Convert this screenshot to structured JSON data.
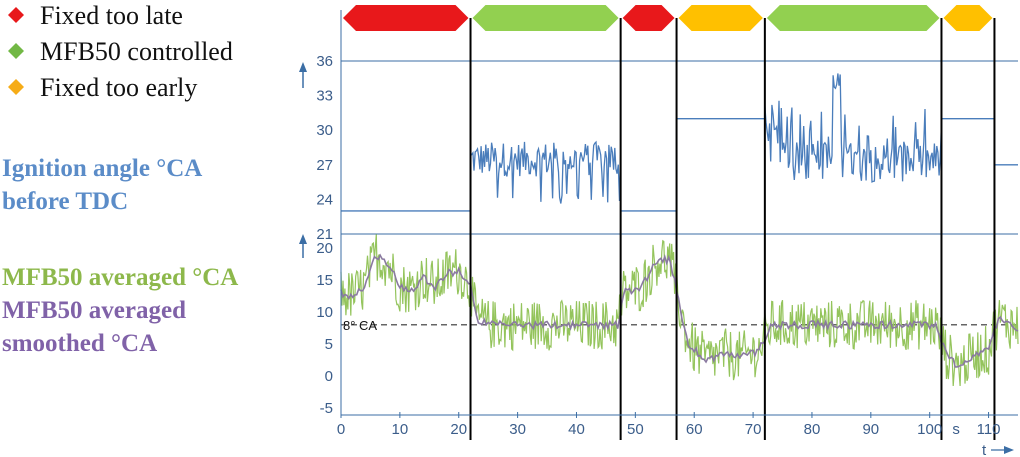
{
  "chart_data": {
    "type": "line",
    "legend": [
      {
        "label": "Fixed too late",
        "color": "#e8181b"
      },
      {
        "label": "MFB50 controlled",
        "color": "#72b845"
      },
      {
        "label": "Fixed too early",
        "color": "#f6ac17"
      }
    ],
    "top_panel": {
      "label_lines": [
        "Ignition angle °CA",
        "before TDC"
      ],
      "label_color": "#5b8cc8",
      "yticks": [
        "36",
        "33",
        "30",
        "27",
        "24",
        "21"
      ],
      "ylim": [
        21,
        36
      ],
      "fixed_segments": [
        {
          "from": 0,
          "to": 22,
          "value": 23
        },
        {
          "from": 47.5,
          "to": 57,
          "value": 23
        },
        {
          "from": 57,
          "to": 72,
          "value": 31
        },
        {
          "from": 102,
          "to": 111,
          "value": 31
        },
        {
          "from": 111,
          "to": 115,
          "value": 27
        }
      ],
      "controlled_segments": [
        {
          "from": 22,
          "to": 47.5,
          "min": 23.5,
          "max": 29
        },
        {
          "from": 72,
          "to": 102,
          "min": 25,
          "max": 35
        }
      ]
    },
    "bottom_panel": {
      "label_lines": [
        "MFB50 averaged °CA",
        "MFB50 averaged",
        "smoothed °CA"
      ],
      "label_colors": [
        "#8db84b",
        "#8062a8",
        "#8062a8"
      ],
      "yticks": [
        "20",
        "15",
        "10",
        "5",
        "0",
        "-5"
      ],
      "ylim": [
        -5,
        22
      ],
      "reference_line": {
        "value": 8,
        "label": "8° CA"
      },
      "series": [
        {
          "name": "MFB50 averaged °CA",
          "color": "#94c45c"
        },
        {
          "name": "MFB50 averaged smoothed °CA",
          "color": "#8a7aa0"
        }
      ],
      "smoothed_profile": [
        [
          0,
          13
        ],
        [
          2,
          12.5
        ],
        [
          4,
          14
        ],
        [
          6,
          19
        ],
        [
          8,
          17.5
        ],
        [
          10,
          14
        ],
        [
          12,
          13.5
        ],
        [
          14,
          15.5
        ],
        [
          16,
          14
        ],
        [
          18,
          16
        ],
        [
          20,
          16.5
        ],
        [
          22,
          14
        ],
        [
          23,
          9
        ],
        [
          25,
          8
        ],
        [
          47,
          8
        ],
        [
          48,
          13
        ],
        [
          51,
          14
        ],
        [
          54,
          18.5
        ],
        [
          56,
          18
        ],
        [
          57,
          13
        ],
        [
          59,
          5
        ],
        [
          62,
          2.5
        ],
        [
          65,
          3.5
        ],
        [
          68,
          3
        ],
        [
          71,
          4
        ],
        [
          72,
          6
        ],
        [
          73,
          8
        ],
        [
          101,
          8
        ],
        [
          103,
          3
        ],
        [
          105,
          1.5
        ],
        [
          108,
          3.5
        ],
        [
          110,
          4
        ],
        [
          111,
          7.5
        ],
        [
          112,
          9
        ],
        [
          115,
          7.5
        ]
      ]
    },
    "segment_boundaries": [
      22,
      47.5,
      57,
      72,
      102,
      111
    ],
    "phases": [
      {
        "from": 0,
        "to": 22,
        "state": "late",
        "color": "#e8181b"
      },
      {
        "from": 22,
        "to": 47.5,
        "state": "controlled",
        "color": "#92d050"
      },
      {
        "from": 47.5,
        "to": 57,
        "state": "late",
        "color": "#e8181b"
      },
      {
        "from": 57,
        "to": 72,
        "state": "early",
        "color": "#ffc000"
      },
      {
        "from": 72,
        "to": 102,
        "state": "controlled",
        "color": "#92d050"
      },
      {
        "from": 102,
        "to": 111,
        "state": "early",
        "color": "#ffc000"
      }
    ],
    "x_axis": {
      "ticks": [
        0,
        10,
        20,
        30,
        40,
        50,
        60,
        70,
        80,
        90,
        100,
        110
      ],
      "xlim": [
        0,
        115
      ],
      "unit": "s",
      "label": "t"
    },
    "axis_color": "#3b6ea5"
  }
}
